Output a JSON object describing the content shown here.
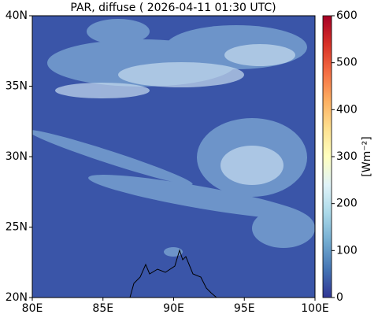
{
  "chart_data": {
    "type": "map",
    "title": "PAR, diffuse ( 2026-04-11 01:30 UTC)",
    "xlim": [
      80,
      100
    ],
    "xticks": [
      {
        "value": 80,
        "label": "80E"
      },
      {
        "value": 85,
        "label": "85E"
      },
      {
        "value": 90,
        "label": "90E"
      },
      {
        "value": 95,
        "label": "95E"
      },
      {
        "value": 100,
        "label": "100E"
      }
    ],
    "ylim": [
      20,
      40
    ],
    "yticks": [
      {
        "value": 20,
        "label": "20N"
      },
      {
        "value": 25,
        "label": "25N"
      },
      {
        "value": 30,
        "label": "30N"
      },
      {
        "value": 35,
        "label": "35N"
      },
      {
        "value": 40,
        "label": "40N"
      }
    ],
    "colorbar": {
      "label": "[Wm⁻²]",
      "lim": [
        0,
        600
      ],
      "ticks": [
        0,
        100,
        200,
        300,
        400,
        500,
        600
      ],
      "colors": [
        "#313695",
        "#4575b4",
        "#74add1",
        "#abd9e9",
        "#e0f3f8",
        "#ffffbf",
        "#fee090",
        "#fdae61",
        "#f46d43",
        "#d73027",
        "#a50026"
      ]
    }
  }
}
